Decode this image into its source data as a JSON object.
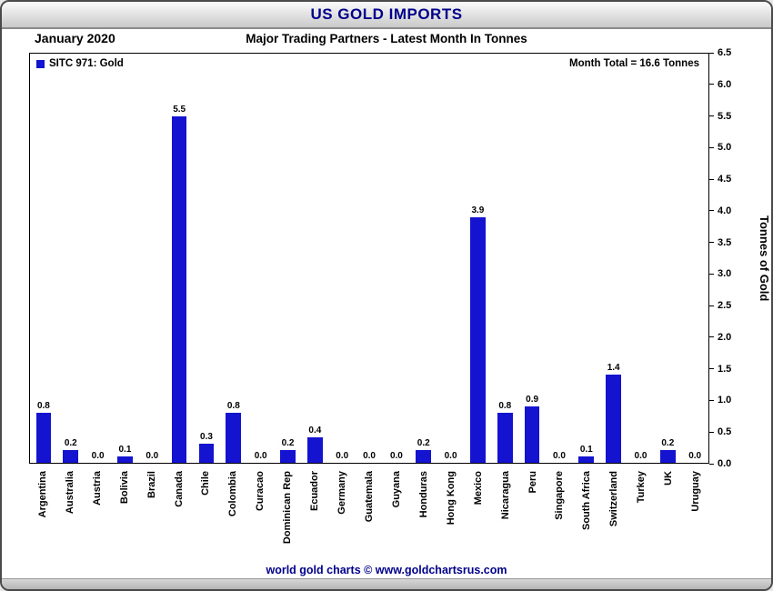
{
  "title": "US GOLD IMPORTS",
  "date_label": "January 2020",
  "subtitle": "Major Trading Partners - Latest Month In Tonnes",
  "legend_label": "SITC 971: Gold",
  "month_total": "Month Total = 16.6 Tonnes",
  "footer": "world gold charts © www.goldchartsrus.com",
  "colors": {
    "bar": "#1414D0",
    "title_text": "#00008B",
    "footer_text": "#00008B"
  },
  "chart_data": {
    "type": "bar",
    "title": "US GOLD IMPORTS",
    "subtitle": "Major Trading Partners - Latest Month In Tonnes",
    "legend": [
      "SITC 971: Gold"
    ],
    "legend_position": "top-left",
    "grid": false,
    "xlabel": "",
    "ylabel": "Tonnes of Gold",
    "ylim": [
      0,
      6.5
    ],
    "ytick_step": 0.5,
    "categories": [
      "Argentina",
      "Australia",
      "Austria",
      "Bolivia",
      "Brazil",
      "Canada",
      "Chile",
      "Colombia",
      "Curacao",
      "Dominican Rep",
      "Ecuador",
      "Germany",
      "Guatemala",
      "Guyana",
      "Honduras",
      "Hong Kong",
      "Mexico",
      "Nicaragua",
      "Peru",
      "Singapore",
      "South Africa",
      "Switzerland",
      "Turkey",
      "UK",
      "Uruguay"
    ],
    "values": [
      0.8,
      0.2,
      0.0,
      0.1,
      0.0,
      5.5,
      0.3,
      0.8,
      0.0,
      0.2,
      0.4,
      0.0,
      0.0,
      0.0,
      0.2,
      0.0,
      3.9,
      0.8,
      0.9,
      0.0,
      0.1,
      1.4,
      0.0,
      0.2,
      0.0
    ],
    "annotations": [
      "Month Total = 16.6 Tonnes"
    ]
  }
}
